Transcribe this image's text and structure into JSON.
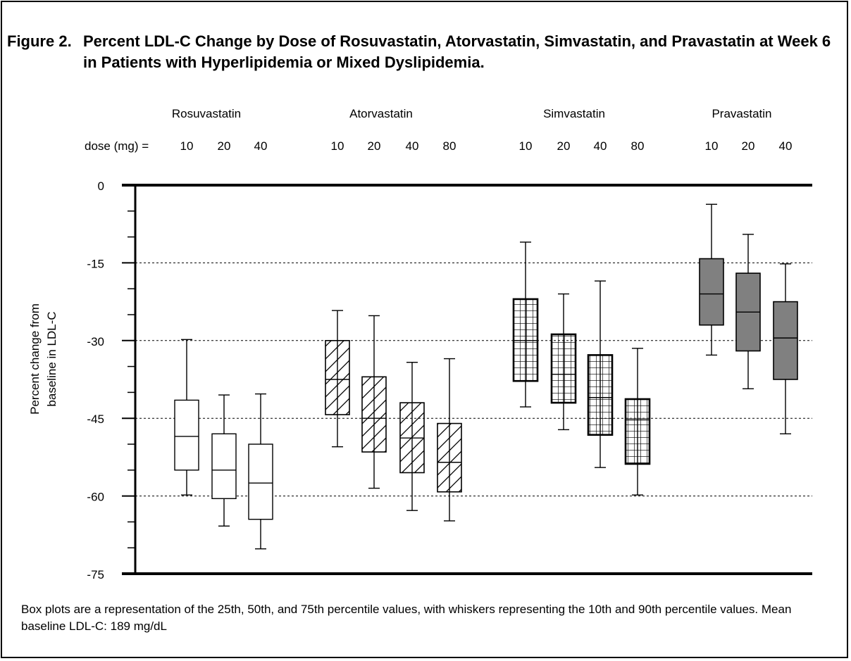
{
  "figure": {
    "title_lead": "Figure 2.",
    "title_rest": "Percent LDL-C Change by Dose of Rosuvastatin, Atorvastatin, Simvastatin, and Pravastatin at Week 6 in Patients with Hyperlipidemia or Mixed Dyslipidemia.",
    "footnote": "Box plots are a representation of the 25th, 50th, and 75th percentile values, with whiskers representing the 10th and 90th percentile values. Mean baseline LDL-C: 189 mg/dL",
    "dose_label": "dose (mg) ="
  },
  "chart_data": {
    "type": "boxplot",
    "ylabel": "Percent change from baseline in LDL-C",
    "ylim": [
      -75,
      0
    ],
    "yticks": [
      0,
      -15,
      -30,
      -45,
      -60,
      -75
    ],
    "gridlines": [
      -15,
      -30,
      -45,
      -60
    ],
    "groups": [
      {
        "name": "Rosuvastatin",
        "fill": "white",
        "doses": [
          {
            "dose": "10",
            "p10": -59.8,
            "p25": -55.0,
            "median": -48.5,
            "p75": -41.5,
            "p90": -29.8
          },
          {
            "dose": "20",
            "p10": -65.8,
            "p25": -60.5,
            "median": -55.0,
            "p75": -48.0,
            "p90": -40.5
          },
          {
            "dose": "40",
            "p10": -70.2,
            "p25": -64.5,
            "median": -57.5,
            "p75": -50.0,
            "p90": -40.3
          }
        ]
      },
      {
        "name": "Atorvastatin",
        "fill": "diagonal-hatch",
        "doses": [
          {
            "dose": "10",
            "p10": -50.5,
            "p25": -44.3,
            "median": -37.5,
            "p75": -30.0,
            "p90": -24.2
          },
          {
            "dose": "20",
            "p10": -58.5,
            "p25": -51.5,
            "median": -45.0,
            "p75": -37.0,
            "p90": -25.2
          },
          {
            "dose": "40",
            "p10": -62.8,
            "p25": -55.5,
            "median": -48.8,
            "p75": -42.0,
            "p90": -34.2
          },
          {
            "dose": "80",
            "p10": -64.8,
            "p25": -59.2,
            "median": -53.5,
            "p75": -46.0,
            "p90": -33.5
          }
        ]
      },
      {
        "name": "Simvastatin",
        "fill": "grid-hatch",
        "doses": [
          {
            "dose": "10",
            "p10": -42.8,
            "p25": -37.8,
            "median": -30.0,
            "p75": -22.0,
            "p90": -11.0
          },
          {
            "dose": "20",
            "p10": -47.2,
            "p25": -42.0,
            "median": -36.5,
            "p75": -28.8,
            "p90": -21.0
          },
          {
            "dose": "40",
            "p10": -54.5,
            "p25": -48.2,
            "median": -41.0,
            "p75": -32.8,
            "p90": -18.5
          },
          {
            "dose": "80",
            "p10": -59.8,
            "p25": -53.8,
            "median": -45.3,
            "p75": -41.3,
            "p90": -31.5
          }
        ]
      },
      {
        "name": "Pravastatin",
        "fill": "gray",
        "doses": [
          {
            "dose": "10",
            "p10": -32.8,
            "p25": -27.0,
            "median": -21.0,
            "p75": -14.2,
            "p90": -3.7
          },
          {
            "dose": "20",
            "p10": -39.3,
            "p25": -32.0,
            "median": -24.5,
            "p75": -17.0,
            "p90": -9.5
          },
          {
            "dose": "40",
            "p10": -48.0,
            "p25": -37.5,
            "median": -29.5,
            "p75": -22.5,
            "p90": -15.2
          }
        ]
      }
    ]
  }
}
